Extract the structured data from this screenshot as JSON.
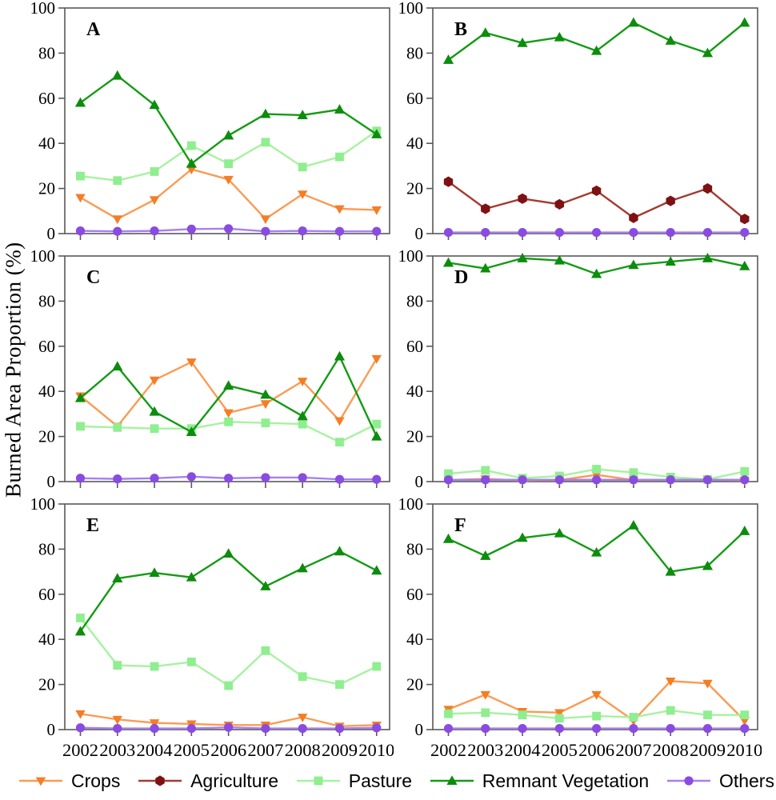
{
  "y_axis_title": "Burned Area Proportion (%)",
  "colors": {
    "axis": "#5a5a5a",
    "text": "#000000",
    "crops": {
      "line": "#fb9b52",
      "marker": "#f47d26"
    },
    "agriculture": {
      "line": "#a33b32",
      "marker": "#7e1113"
    },
    "pasture": {
      "line": "#a7f2a0",
      "marker": "#8fee8f"
    },
    "remnant_vegetation": {
      "line": "#149b14",
      "marker": "#0d8c0d"
    },
    "others": {
      "line": "#a87ff0",
      "marker": "#8a4be0"
    }
  },
  "legend": {
    "items": [
      {
        "key": "crops",
        "label": "Crops"
      },
      {
        "key": "agriculture",
        "label": "Agriculture"
      },
      {
        "key": "pasture",
        "label": "Pasture"
      },
      {
        "key": "remnant_vegetation",
        "label": "Remnant Vegetation"
      },
      {
        "key": "others",
        "label": "Others"
      }
    ]
  },
  "chart_data": [
    {
      "type": "line",
      "panel_label": "A",
      "x": [
        "2002",
        "2003",
        "2004",
        "2005",
        "2006",
        "2007",
        "2008",
        "2009",
        "2010"
      ],
      "x_labels_visible": false,
      "ylim": [
        0,
        100
      ],
      "yticks": [
        0,
        20,
        40,
        60,
        80,
        100
      ],
      "series": [
        {
          "key": "crops",
          "name": "Crops",
          "values": [
            16,
            6.5,
            15,
            28.5,
            24,
            6.5,
            17.5,
            11,
            10.5
          ]
        },
        {
          "key": "pasture",
          "name": "Pasture",
          "values": [
            25.5,
            23.5,
            27.5,
            39,
            31,
            40.5,
            29.5,
            34,
            45.5
          ]
        },
        {
          "key": "remnant_vegetation",
          "name": "Remnant Vegetation",
          "values": [
            58,
            70,
            57,
            31,
            43.5,
            53,
            52.5,
            55,
            44
          ]
        },
        {
          "key": "others",
          "name": "Others",
          "values": [
            1.2,
            1,
            1.2,
            2,
            2.2,
            1,
            1.2,
            1,
            1
          ]
        }
      ]
    },
    {
      "type": "line",
      "panel_label": "B",
      "x": [
        "2002",
        "2003",
        "2004",
        "2005",
        "2006",
        "2007",
        "2008",
        "2009",
        "2010"
      ],
      "x_labels_visible": false,
      "ylim": [
        0,
        100
      ],
      "yticks": [
        0,
        20,
        40,
        60,
        80,
        100
      ],
      "series": [
        {
          "key": "agriculture",
          "name": "Agriculture",
          "values": [
            23,
            11,
            15.5,
            13,
            19,
            7,
            14.5,
            20,
            6.5
          ]
        },
        {
          "key": "remnant_vegetation",
          "name": "Remnant Vegetation",
          "values": [
            77,
            89,
            84.5,
            87,
            81,
            93.5,
            85.5,
            80,
            93.5
          ]
        },
        {
          "key": "others",
          "name": "Others",
          "values": [
            0.5,
            0.5,
            0.5,
            0.5,
            0.5,
            0.5,
            0.5,
            0.5,
            0.5
          ]
        }
      ]
    },
    {
      "type": "line",
      "panel_label": "C",
      "x": [
        "2002",
        "2003",
        "2004",
        "2005",
        "2006",
        "2007",
        "2008",
        "2009",
        "2010"
      ],
      "x_labels_visible": false,
      "ylim": [
        0,
        100
      ],
      "yticks": [
        0,
        20,
        40,
        60,
        80,
        100
      ],
      "series": [
        {
          "key": "crops",
          "name": "Crops",
          "values": [
            38,
            24.5,
            45,
            53,
            30.5,
            34.5,
            44.5,
            27,
            54.5
          ]
        },
        {
          "key": "pasture",
          "name": "Pasture",
          "values": [
            24.5,
            24,
            23.5,
            23.5,
            26.5,
            26,
            25.5,
            17.5,
            25.5
          ]
        },
        {
          "key": "remnant_vegetation",
          "name": "Remnant Vegetation",
          "values": [
            37,
            51,
            31,
            22,
            42.5,
            38.5,
            29,
            55.5,
            20
          ]
        },
        {
          "key": "others",
          "name": "Others",
          "values": [
            1.5,
            1.2,
            1.5,
            2.2,
            1.5,
            1.8,
            1.8,
            1,
            1
          ]
        }
      ]
    },
    {
      "type": "line",
      "panel_label": "D",
      "x": [
        "2002",
        "2003",
        "2004",
        "2005",
        "2006",
        "2007",
        "2008",
        "2009",
        "2010"
      ],
      "x_labels_visible": false,
      "ylim": [
        0,
        100
      ],
      "yticks": [
        0,
        20,
        40,
        60,
        80,
        100
      ],
      "series": [
        {
          "key": "crops",
          "name": "Crops",
          "values": [
            0.7,
            1.2,
            0.5,
            0.7,
            3,
            0.7,
            0.8,
            1,
            0.5
          ]
        },
        {
          "key": "pasture",
          "name": "Pasture",
          "values": [
            3.5,
            5,
            1.5,
            2.5,
            5.5,
            4,
            2,
            1,
            4.5
          ]
        },
        {
          "key": "remnant_vegetation",
          "name": "Remnant Vegetation",
          "values": [
            97,
            94.5,
            99,
            98,
            92,
            96,
            97.5,
            99,
            95.5
          ]
        },
        {
          "key": "others",
          "name": "Others",
          "values": [
            0.8,
            0.8,
            0.8,
            0.8,
            0.8,
            0.8,
            0.8,
            0.8,
            0.8
          ]
        }
      ]
    },
    {
      "type": "line",
      "panel_label": "E",
      "x": [
        "2002",
        "2003",
        "2004",
        "2005",
        "2006",
        "2007",
        "2008",
        "2009",
        "2010"
      ],
      "x_labels_visible": true,
      "ylim": [
        0,
        100
      ],
      "yticks": [
        0,
        20,
        40,
        60,
        80,
        100
      ],
      "series": [
        {
          "key": "crops",
          "name": "Crops",
          "values": [
            7,
            4.5,
            3,
            2.5,
            2,
            2,
            5.5,
            1.5,
            2
          ]
        },
        {
          "key": "pasture",
          "name": "Pasture",
          "values": [
            49.5,
            28.5,
            28,
            30,
            19.5,
            35,
            23.5,
            20,
            28
          ]
        },
        {
          "key": "remnant_vegetation",
          "name": "Remnant Vegetation",
          "values": [
            43.5,
            67,
            69.5,
            67.5,
            78,
            63.5,
            71.5,
            79,
            70.5
          ]
        },
        {
          "key": "others",
          "name": "Others",
          "values": [
            0.8,
            0.5,
            0.5,
            0.5,
            1,
            0.5,
            0.5,
            0.5,
            0.8
          ]
        }
      ]
    },
    {
      "type": "line",
      "panel_label": "F",
      "x": [
        "2002",
        "2003",
        "2004",
        "2005",
        "2006",
        "2007",
        "2008",
        "2009",
        "2010"
      ],
      "x_labels_visible": true,
      "ylim": [
        0,
        100
      ],
      "yticks": [
        0,
        20,
        40,
        60,
        80,
        100
      ],
      "series": [
        {
          "key": "crops",
          "name": "Crops",
          "values": [
            9,
            15.5,
            8,
            7.5,
            15.5,
            4,
            21.5,
            20.5,
            4
          ]
        },
        {
          "key": "pasture",
          "name": "Pasture",
          "values": [
            7,
            7.5,
            6.5,
            5,
            6,
            5.5,
            8.5,
            6.5,
            6.5
          ]
        },
        {
          "key": "remnant_vegetation",
          "name": "Remnant Vegetation",
          "values": [
            84.5,
            77,
            85,
            87,
            78.5,
            90.5,
            70,
            72.5,
            88
          ]
        },
        {
          "key": "others",
          "name": "Others",
          "values": [
            0.5,
            0.5,
            0.5,
            0.5,
            0.5,
            0.5,
            0.5,
            0.5,
            0.5
          ]
        }
      ]
    }
  ]
}
